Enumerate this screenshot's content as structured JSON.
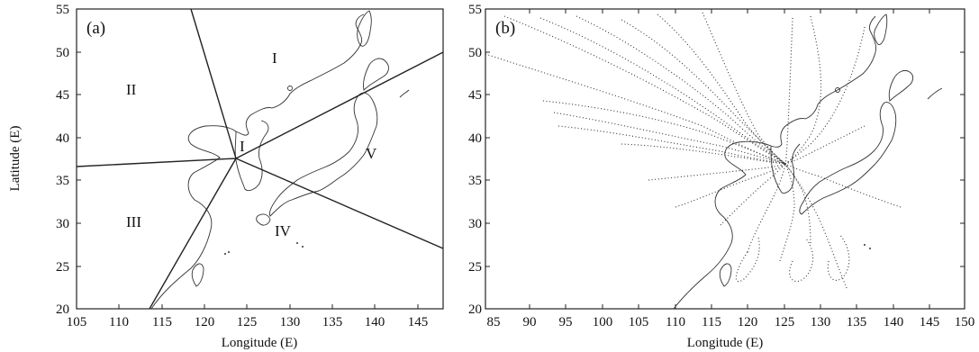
{
  "figure": {
    "panel_a": {
      "label": "(a)",
      "ylabel": "Latitude (E)",
      "xlabel": "Longitude (E)",
      "x_ticks": [
        "105",
        "110",
        "115",
        "120",
        "125",
        "130",
        "135",
        "140",
        "145"
      ],
      "y_ticks": [
        "55",
        "50",
        "45",
        "40",
        "35",
        "30",
        "25",
        "20"
      ],
      "xlim": [
        105,
        148
      ],
      "ylim": [
        20,
        55
      ],
      "regions": [
        "I",
        "II",
        "III",
        "IV",
        "V",
        "I"
      ]
    },
    "panel_b": {
      "label": "(b)",
      "xlabel": "Longitude (E)",
      "x_ticks": [
        "85",
        "90",
        "95",
        "100",
        "105",
        "110",
        "115",
        "120",
        "125",
        "130",
        "135",
        "140",
        "145",
        "150"
      ],
      "y_ticks": [
        "55",
        "50",
        "45",
        "40",
        "35",
        "30",
        "25",
        "20"
      ],
      "xlim": [
        85,
        150
      ],
      "ylim": [
        20,
        55
      ]
    }
  },
  "colors": {
    "ink": "#222222",
    "background": "#ffffff"
  }
}
